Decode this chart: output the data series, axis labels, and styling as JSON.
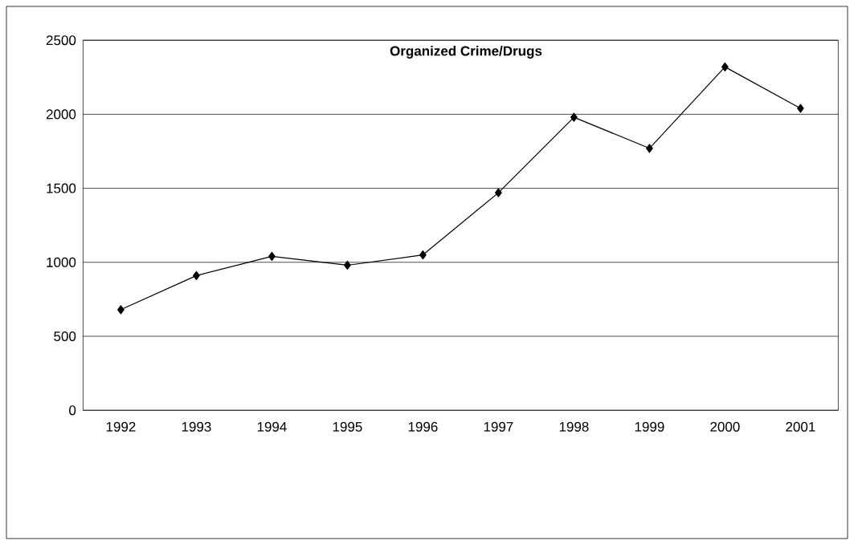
{
  "chart_data": {
    "type": "line",
    "title": "Organized Crime/Drugs",
    "categories": [
      "1992",
      "1993",
      "1994",
      "1995",
      "1996",
      "1997",
      "1998",
      "1999",
      "2000",
      "2001"
    ],
    "values": [
      680,
      910,
      1040,
      980,
      1050,
      1470,
      1980,
      1770,
      2320,
      2040
    ],
    "color": "#000000",
    "marker": "diamond",
    "line_style": "solid",
    "ylim": [
      0,
      2500
    ],
    "yticks": [
      0,
      500,
      1000,
      1500,
      2000,
      2500
    ],
    "grid": "y"
  }
}
